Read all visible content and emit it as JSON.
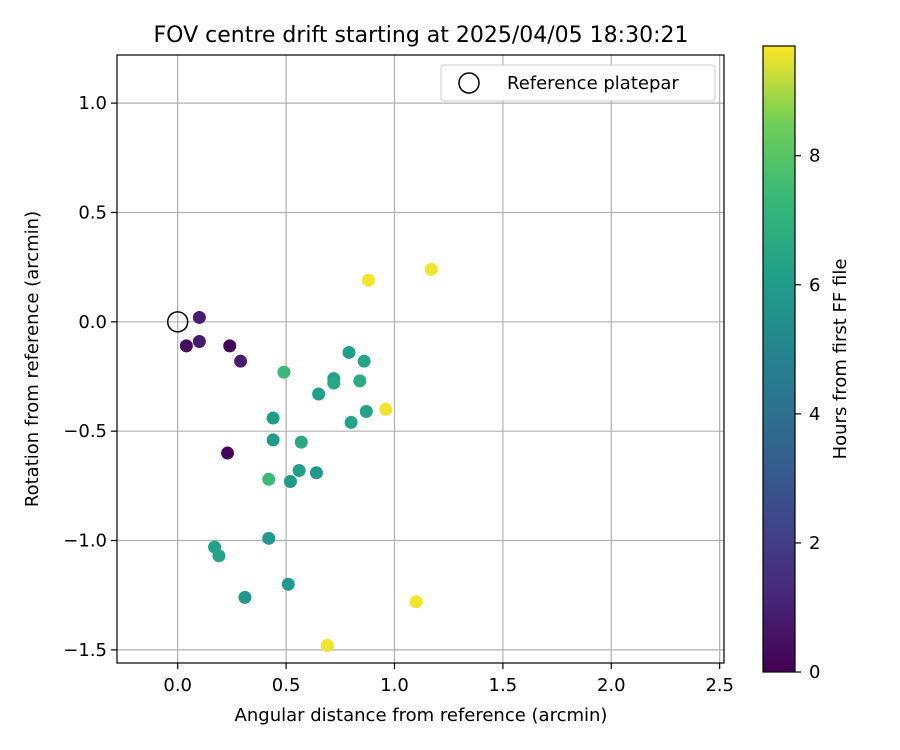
{
  "chart_data": {
    "type": "scatter",
    "title": "FOV centre drift starting at 2025/04/05 18:30:21",
    "xlabel": "Angular distance from reference (arcmin)",
    "ylabel": "Rotation from reference (arcmin)",
    "xlim": [
      -0.28,
      2.52
    ],
    "ylim": [
      -1.56,
      1.22
    ],
    "xticks": [
      0.0,
      0.5,
      1.0,
      1.5,
      2.0,
      2.5
    ],
    "xtick_labels": [
      "0.0",
      "0.5",
      "1.0",
      "1.5",
      "2.0",
      "2.5"
    ],
    "yticks": [
      1.0,
      0.5,
      0.0,
      -0.5,
      -1.0,
      -1.5
    ],
    "ytick_labels": [
      "1.0",
      "0.5",
      "0.0",
      "−0.5",
      "−1.0",
      "−1.5"
    ],
    "grid": true,
    "legend": {
      "position": "top-right",
      "entries": [
        {
          "label": "Reference platepar",
          "marker": "open-circle"
        }
      ]
    },
    "reference_point": {
      "x": 0.0,
      "y": 0.0
    },
    "colorbar": {
      "label": "Hours from first FF file",
      "range": [
        0,
        9.7
      ],
      "ticks": [
        0,
        2,
        4,
        6,
        8
      ],
      "tick_labels": [
        "0",
        "2",
        "4",
        "6",
        "8"
      ],
      "colormap": "viridis"
    },
    "points": [
      {
        "x": 0.1,
        "y": 0.02,
        "t": 0.9
      },
      {
        "x": 0.04,
        "y": -0.11,
        "t": 0.3
      },
      {
        "x": 0.1,
        "y": -0.09,
        "t": 0.8
      },
      {
        "x": 0.24,
        "y": -0.11,
        "t": 0.2
      },
      {
        "x": 0.29,
        "y": -0.18,
        "t": 0.9
      },
      {
        "x": 0.23,
        "y": -0.6,
        "t": 0.2
      },
      {
        "x": 0.49,
        "y": -0.23,
        "t": 7.4
      },
      {
        "x": 0.44,
        "y": -0.44,
        "t": 6.0
      },
      {
        "x": 0.44,
        "y": -0.54,
        "t": 6.0
      },
      {
        "x": 0.57,
        "y": -0.55,
        "t": 6.6
      },
      {
        "x": 0.65,
        "y": -0.33,
        "t": 6.1
      },
      {
        "x": 0.72,
        "y": -0.26,
        "t": 6.2
      },
      {
        "x": 0.72,
        "y": -0.28,
        "t": 6.5
      },
      {
        "x": 0.79,
        "y": -0.14,
        "t": 6.1
      },
      {
        "x": 0.86,
        "y": -0.18,
        "t": 6.4
      },
      {
        "x": 0.84,
        "y": -0.27,
        "t": 6.7
      },
      {
        "x": 0.87,
        "y": -0.41,
        "t": 6.3
      },
      {
        "x": 0.8,
        "y": -0.46,
        "t": 6.3
      },
      {
        "x": 0.56,
        "y": -0.68,
        "t": 6.1
      },
      {
        "x": 0.64,
        "y": -0.69,
        "t": 5.9
      },
      {
        "x": 0.52,
        "y": -0.73,
        "t": 6.0
      },
      {
        "x": 0.42,
        "y": -0.72,
        "t": 7.4
      },
      {
        "x": 0.88,
        "y": 0.19,
        "t": 9.6
      },
      {
        "x": 1.17,
        "y": 0.24,
        "t": 9.6
      },
      {
        "x": 0.96,
        "y": -0.4,
        "t": 9.6
      },
      {
        "x": 0.17,
        "y": -1.03,
        "t": 6.2
      },
      {
        "x": 0.19,
        "y": -1.07,
        "t": 6.4
      },
      {
        "x": 0.42,
        "y": -0.99,
        "t": 5.9
      },
      {
        "x": 0.31,
        "y": -1.26,
        "t": 5.8
      },
      {
        "x": 0.51,
        "y": -1.2,
        "t": 5.9
      },
      {
        "x": 0.69,
        "y": -1.48,
        "t": 9.6
      },
      {
        "x": 1.1,
        "y": -1.28,
        "t": 9.6
      }
    ]
  }
}
